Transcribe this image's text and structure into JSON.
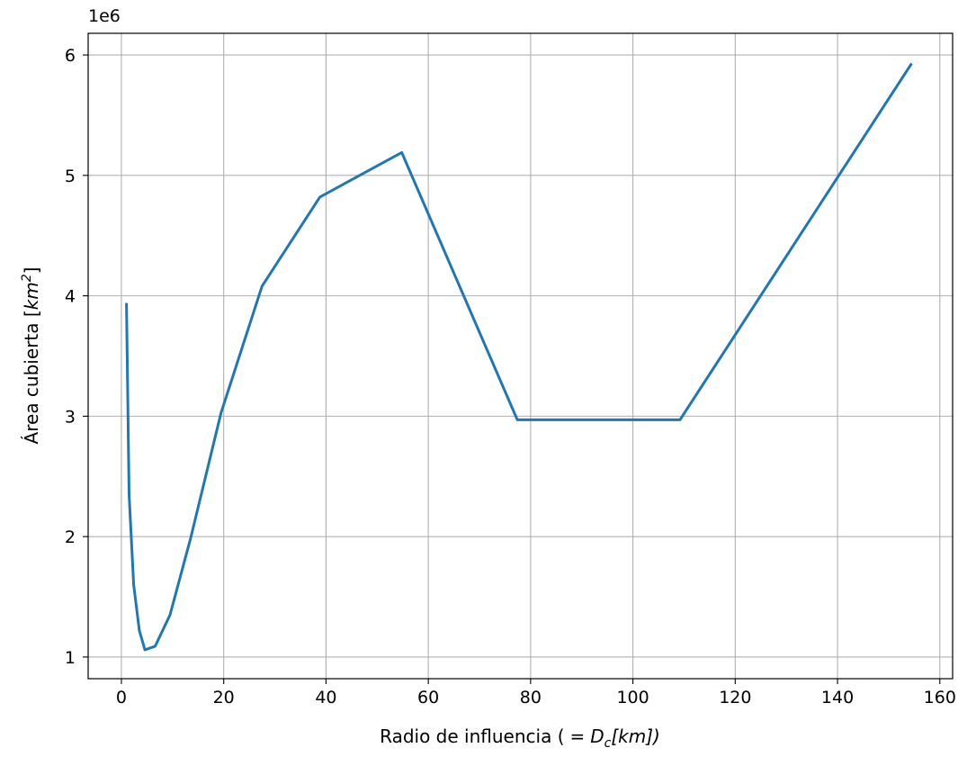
{
  "chart_data": {
    "type": "line",
    "title": "",
    "xlabel": "Radio de influencia ( = D_c[km])",
    "xlabel_parts": {
      "prefix": "Radio de influencia (",
      "eq": "=",
      "d": "D",
      "sub": "c",
      "unit": "[km])"
    },
    "ylabel": "Área cubierta [km²]",
    "ylabel_parts": {
      "prefix": "Área cubierta [",
      "unit": "km",
      "exp": "2",
      "suffix": "]"
    },
    "y_offset_label": "1e6",
    "xlim": [
      -6.5,
      162.5
    ],
    "ylim": [
      0.82,
      6.18
    ],
    "xticks": [
      0,
      20,
      40,
      60,
      80,
      100,
      120,
      140,
      160
    ],
    "yticks": [
      1,
      2,
      3,
      4,
      5,
      6
    ],
    "grid": true,
    "line_color": "#1f77b4",
    "series": [
      {
        "x": [
          1.0,
          1.5,
          2.4,
          3.5,
          4.6,
          6.6,
          9.5,
          13.5,
          19.5,
          27.5,
          38.8,
          54.8,
          77.4,
          109.2,
          154.5
        ],
        "y": [
          3.94,
          2.35,
          1.6,
          1.22,
          1.06,
          1.09,
          1.35,
          1.98,
          3.03,
          4.08,
          4.82,
          5.19,
          2.97,
          2.97,
          5.93
        ]
      }
    ]
  }
}
